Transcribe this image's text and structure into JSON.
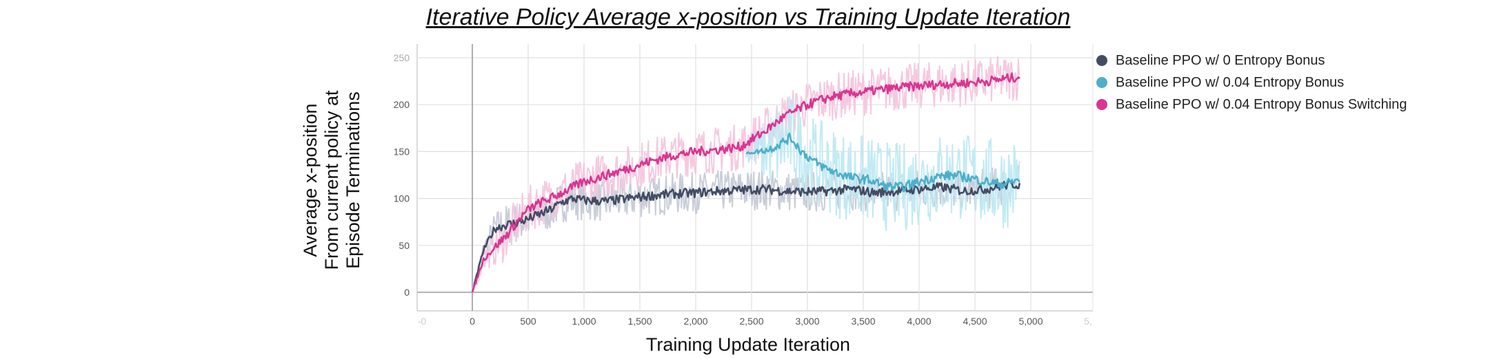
{
  "chart_data": {
    "type": "line",
    "title": "Iterative Policy Average x-position vs Training Update Iteration",
    "xlabel": "Training Update Iteration",
    "ylabel_lines": [
      "Average x-position",
      "From current policy at",
      "Episode Terminations"
    ],
    "xlim": [
      -5,
      5350
    ],
    "ylim": [
      -20,
      262
    ],
    "x_ticks": [
      0,
      500,
      1000,
      1500,
      2000,
      2500,
      3000,
      3500,
      4000,
      4500,
      5000
    ],
    "x_tick_labels": [
      "0",
      "500",
      "1,000",
      "1,500",
      "2,000",
      "2,500",
      "3,000",
      "3,500",
      "4,000",
      "4,500",
      "5,000"
    ],
    "x_edge_labels": {
      "left": "-0",
      "right": "5,"
    },
    "y_ticks": [
      0,
      50,
      100,
      150,
      200,
      250
    ],
    "y_tick_labels": [
      "0",
      "50",
      "100",
      "150",
      "200",
      "250"
    ],
    "grid": true,
    "legend_position": "top-right, outside plot",
    "series": [
      {
        "name": "Baseline PPO w/ 0 Entropy Bonus",
        "color": "#434c63",
        "raw_color": "#c5cad6",
        "x": [
          0,
          100,
          200,
          300,
          400,
          500,
          600,
          700,
          800,
          900,
          1000,
          1200,
          1400,
          1600,
          1800,
          2000,
          2200,
          2400,
          2600,
          2800,
          3000,
          3200,
          3400,
          3600,
          3800,
          4000,
          4200,
          4400,
          4600,
          4800,
          4900
        ],
        "values": [
          0,
          45,
          68,
          72,
          74,
          78,
          83,
          88,
          96,
          100,
          98,
          97,
          100,
          103,
          105,
          106,
          108,
          109,
          110,
          108,
          107,
          108,
          110,
          106,
          108,
          110,
          112,
          108,
          110,
          115,
          115
        ],
        "raw_spread": 22
      },
      {
        "name": "Baseline PPO w/ 0.04 Entropy Bonus",
        "color": "#4cafca",
        "raw_color": "#bfe9f3",
        "x": [
          2450,
          2550,
          2650,
          2750,
          2850,
          2950,
          3050,
          3150,
          3250,
          3400,
          3550,
          3700,
          3850,
          4000,
          4150,
          4300,
          4450,
          4600,
          4750,
          4900
        ],
        "values": [
          148,
          150,
          152,
          158,
          165,
          150,
          140,
          133,
          128,
          122,
          120,
          113,
          112,
          118,
          123,
          125,
          122,
          118,
          115,
          120
        ],
        "raw_spread": 48
      },
      {
        "name": "Baseline PPO w/ 0.04 Entropy Bonus Switching",
        "color": "#d93591",
        "raw_color": "#f4c6de",
        "x": [
          0,
          100,
          200,
          300,
          400,
          500,
          600,
          700,
          800,
          900,
          1000,
          1200,
          1400,
          1600,
          1800,
          2000,
          2200,
          2400,
          2600,
          2800,
          3000,
          3200,
          3400,
          3600,
          3800,
          4000,
          4200,
          4400,
          4600,
          4800,
          4900
        ],
        "values": [
          0,
          35,
          48,
          60,
          75,
          88,
          95,
          100,
          106,
          112,
          118,
          125,
          132,
          140,
          146,
          150,
          152,
          155,
          170,
          188,
          200,
          208,
          212,
          215,
          218,
          220,
          222,
          223,
          225,
          228,
          230
        ],
        "raw_spread": 25
      }
    ]
  }
}
